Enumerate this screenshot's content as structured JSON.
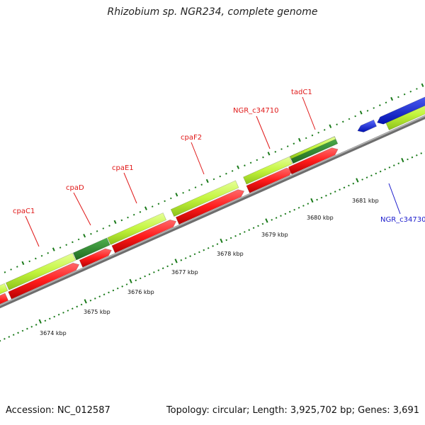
{
  "title": "Rhizobium sp. NGR234, complete genome",
  "footer": {
    "accession": "Accession: NC_012587",
    "summary": "Topology: circular; Length: 3,925,702 bp; Genes: 3,691"
  },
  "colors": {
    "backbone": "#8c8c8c",
    "forward_gene": "#c3f53d",
    "forward_gene_dark": "#2f8a2f",
    "reverse_gene": "#ff1b1b",
    "reverse_gene_blue": "#0a1ee6",
    "tick": "#1a7a1a",
    "red_label": "#e01818",
    "blue_label": "#1a1acc"
  },
  "scale": {
    "labels": [
      "3674 kbp",
      "3675 kbp",
      "3676 kbp",
      "3677 kbp",
      "3678 kbp",
      "3679 kbp",
      "3680 kbp",
      "3681 kbp"
    ]
  },
  "genes": {
    "labels": [
      {
        "name": "cpaC1",
        "color": "red"
      },
      {
        "name": "cpaD",
        "color": "red"
      },
      {
        "name": "cpaE1",
        "color": "red"
      },
      {
        "name": "cpaF2",
        "color": "red"
      },
      {
        "name": "NGR_c34710",
        "color": "red"
      },
      {
        "name": "tadC1",
        "color": "red"
      },
      {
        "name": "NGR_c34730",
        "color": "blue"
      }
    ]
  }
}
